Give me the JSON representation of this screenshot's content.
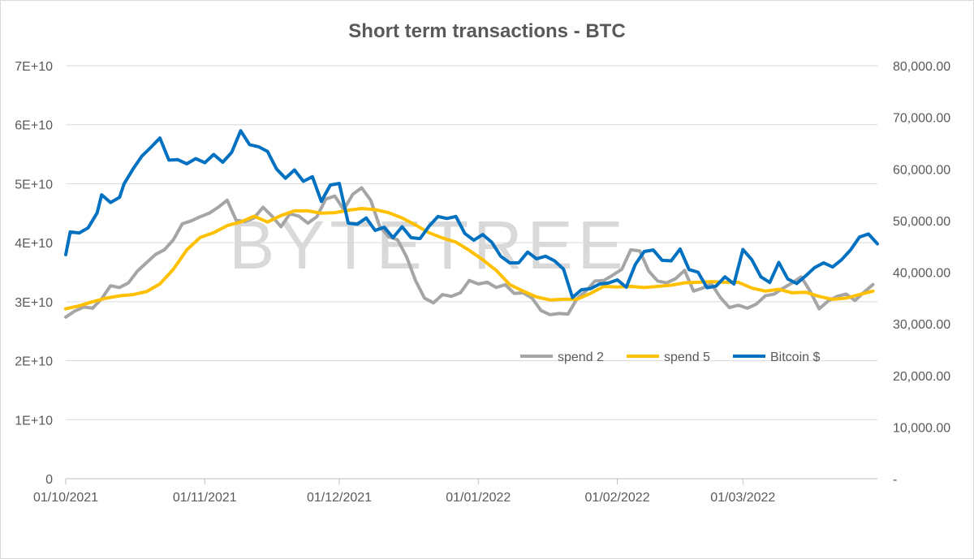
{
  "chart_data": {
    "type": "line",
    "title": "Short term transactions - BTC",
    "watermark": "BYTETREE",
    "x_range": [
      "2021-10-01",
      "2022-03-31"
    ],
    "x_tick_labels": [
      "01/10/2021",
      "01/11/2021",
      "01/12/2021",
      "01/01/2022",
      "01/02/2022",
      "01/03/2022"
    ],
    "x_tick_dates": [
      "2021-10-01",
      "2021-11-01",
      "2021-12-01",
      "2022-01-01",
      "2022-02-01",
      "2022-03-01"
    ],
    "y_left": {
      "range": [
        0,
        70000000000
      ],
      "ticks": [
        0,
        10000000000,
        20000000000,
        30000000000,
        40000000000,
        50000000000,
        60000000000,
        70000000000
      ],
      "tick_labels": [
        "0",
        "1E+10",
        "2E+10",
        "3E+10",
        "4E+10",
        "5E+10",
        "6E+10",
        "7E+10"
      ]
    },
    "y_right": {
      "range": [
        0,
        80000
      ],
      "ticks": [
        0,
        10000,
        20000,
        30000,
        40000,
        50000,
        60000,
        70000,
        80000
      ],
      "tick_labels": [
        "-",
        "10,000.00",
        "20,000.00",
        "30,000.00",
        "40,000.00",
        "50,000.00",
        "60,000.00",
        "70,000.00",
        "80,000.00"
      ]
    },
    "grid": "horizontal",
    "legend_position": "right-middle",
    "series": [
      {
        "name": "spend 2",
        "axis": "left",
        "color": "#a5a5a5",
        "points": [
          [
            "2021-10-01",
            27400000000
          ],
          [
            "2021-10-03",
            28400000000
          ],
          [
            "2021-10-05",
            29100000000
          ],
          [
            "2021-10-07",
            28900000000
          ],
          [
            "2021-10-09",
            30500000000
          ],
          [
            "2021-10-11",
            32700000000
          ],
          [
            "2021-10-13",
            32400000000
          ],
          [
            "2021-10-15",
            33200000000
          ],
          [
            "2021-10-17",
            35200000000
          ],
          [
            "2021-10-19",
            36600000000
          ],
          [
            "2021-10-21",
            38000000000
          ],
          [
            "2021-10-23",
            38800000000
          ],
          [
            "2021-10-25",
            40500000000
          ],
          [
            "2021-10-27",
            43200000000
          ],
          [
            "2021-10-29",
            43700000000
          ],
          [
            "2021-10-31",
            44400000000
          ],
          [
            "2021-11-02",
            45000000000
          ],
          [
            "2021-11-04",
            46000000000
          ],
          [
            "2021-11-06",
            47200000000
          ],
          [
            "2021-11-08",
            43800000000
          ],
          [
            "2021-11-10",
            43600000000
          ],
          [
            "2021-11-12",
            44200000000
          ],
          [
            "2021-11-14",
            46000000000
          ],
          [
            "2021-11-16",
            44500000000
          ],
          [
            "2021-11-18",
            42700000000
          ],
          [
            "2021-11-20",
            44900000000
          ],
          [
            "2021-11-22",
            44500000000
          ],
          [
            "2021-11-24",
            43300000000
          ],
          [
            "2021-11-26",
            44400000000
          ],
          [
            "2021-11-28",
            47400000000
          ],
          [
            "2021-11-30",
            47900000000
          ],
          [
            "2021-12-02",
            45600000000
          ],
          [
            "2021-12-04",
            48200000000
          ],
          [
            "2021-12-06",
            49300000000
          ],
          [
            "2021-12-08",
            47200000000
          ],
          [
            "2021-12-10",
            42800000000
          ],
          [
            "2021-12-12",
            41000000000
          ],
          [
            "2021-12-14",
            40500000000
          ],
          [
            "2021-12-16",
            37600000000
          ],
          [
            "2021-12-18",
            33600000000
          ],
          [
            "2021-12-20",
            30600000000
          ],
          [
            "2021-12-22",
            29800000000
          ],
          [
            "2021-12-24",
            31200000000
          ],
          [
            "2021-12-26",
            30900000000
          ],
          [
            "2021-12-28",
            31500000000
          ],
          [
            "2021-12-30",
            33600000000
          ],
          [
            "2022-01-01",
            33000000000
          ],
          [
            "2022-01-03",
            33300000000
          ],
          [
            "2022-01-05",
            32400000000
          ],
          [
            "2022-01-07",
            32900000000
          ],
          [
            "2022-01-09",
            31400000000
          ],
          [
            "2022-01-11",
            31500000000
          ],
          [
            "2022-01-13",
            30600000000
          ],
          [
            "2022-01-15",
            28500000000
          ],
          [
            "2022-01-17",
            27800000000
          ],
          [
            "2022-01-19",
            28000000000
          ],
          [
            "2022-01-21",
            27900000000
          ],
          [
            "2022-01-23",
            30500000000
          ],
          [
            "2022-01-25",
            31800000000
          ],
          [
            "2022-01-27",
            33500000000
          ],
          [
            "2022-01-29",
            33600000000
          ],
          [
            "2022-01-31",
            34500000000
          ],
          [
            "2022-02-02",
            35500000000
          ],
          [
            "2022-02-04",
            38800000000
          ],
          [
            "2022-02-06",
            38600000000
          ],
          [
            "2022-02-08",
            35200000000
          ],
          [
            "2022-02-10",
            33500000000
          ],
          [
            "2022-02-12",
            33200000000
          ],
          [
            "2022-02-14",
            33900000000
          ],
          [
            "2022-02-16",
            35300000000
          ],
          [
            "2022-02-18",
            31800000000
          ],
          [
            "2022-02-20",
            32300000000
          ],
          [
            "2022-02-22",
            33000000000
          ],
          [
            "2022-02-24",
            30700000000
          ],
          [
            "2022-02-26",
            29000000000
          ],
          [
            "2022-02-28",
            29400000000
          ],
          [
            "2022-03-02",
            28900000000
          ],
          [
            "2022-03-04",
            29600000000
          ],
          [
            "2022-03-06",
            31000000000
          ],
          [
            "2022-03-08",
            31300000000
          ],
          [
            "2022-03-10",
            32300000000
          ],
          [
            "2022-03-12",
            33200000000
          ],
          [
            "2022-03-14",
            34200000000
          ],
          [
            "2022-03-16",
            31800000000
          ],
          [
            "2022-03-18",
            28800000000
          ],
          [
            "2022-03-20",
            30100000000
          ],
          [
            "2022-03-22",
            30900000000
          ],
          [
            "2022-03-24",
            31300000000
          ],
          [
            "2022-03-26",
            30200000000
          ],
          [
            "2022-03-28",
            31600000000
          ],
          [
            "2022-03-30",
            32900000000
          ]
        ]
      },
      {
        "name": "spend 5",
        "axis": "left",
        "color": "#ffc000",
        "points": [
          [
            "2021-10-01",
            28800000000
          ],
          [
            "2021-10-04",
            29300000000
          ],
          [
            "2021-10-07",
            30000000000
          ],
          [
            "2021-10-10",
            30600000000
          ],
          [
            "2021-10-13",
            31000000000
          ],
          [
            "2021-10-16",
            31200000000
          ],
          [
            "2021-10-19",
            31700000000
          ],
          [
            "2021-10-22",
            33000000000
          ],
          [
            "2021-10-25",
            35500000000
          ],
          [
            "2021-10-28",
            38800000000
          ],
          [
            "2021-10-31",
            40900000000
          ],
          [
            "2021-11-03",
            41700000000
          ],
          [
            "2021-11-06",
            42900000000
          ],
          [
            "2021-11-09",
            43500000000
          ],
          [
            "2021-11-12",
            44500000000
          ],
          [
            "2021-11-15",
            43500000000
          ],
          [
            "2021-11-18",
            44600000000
          ],
          [
            "2021-11-21",
            45400000000
          ],
          [
            "2021-11-24",
            45400000000
          ],
          [
            "2021-11-27",
            45000000000
          ],
          [
            "2021-11-30",
            45100000000
          ],
          [
            "2021-12-03",
            45500000000
          ],
          [
            "2021-12-06",
            45800000000
          ],
          [
            "2021-12-09",
            45600000000
          ],
          [
            "2021-12-12",
            45100000000
          ],
          [
            "2021-12-15",
            44200000000
          ],
          [
            "2021-12-18",
            43000000000
          ],
          [
            "2021-12-21",
            41700000000
          ],
          [
            "2021-12-24",
            40800000000
          ],
          [
            "2021-12-27",
            40100000000
          ],
          [
            "2021-12-30",
            38700000000
          ],
          [
            "2022-01-02",
            37100000000
          ],
          [
            "2022-01-05",
            35300000000
          ],
          [
            "2022-01-08",
            32900000000
          ],
          [
            "2022-01-11",
            31800000000
          ],
          [
            "2022-01-14",
            30800000000
          ],
          [
            "2022-01-17",
            30300000000
          ],
          [
            "2022-01-20",
            30400000000
          ],
          [
            "2022-01-23",
            30400000000
          ],
          [
            "2022-01-26",
            31400000000
          ],
          [
            "2022-01-29",
            32600000000
          ],
          [
            "2022-02-01",
            32500000000
          ],
          [
            "2022-02-04",
            32600000000
          ],
          [
            "2022-02-07",
            32400000000
          ],
          [
            "2022-02-10",
            32600000000
          ],
          [
            "2022-02-13",
            32800000000
          ],
          [
            "2022-02-16",
            33200000000
          ],
          [
            "2022-02-19",
            33300000000
          ],
          [
            "2022-02-22",
            33400000000
          ],
          [
            "2022-02-25",
            33300000000
          ],
          [
            "2022-02-28",
            33300000000
          ],
          [
            "2022-03-03",
            32300000000
          ],
          [
            "2022-03-06",
            31800000000
          ],
          [
            "2022-03-09",
            32100000000
          ],
          [
            "2022-03-12",
            31500000000
          ],
          [
            "2022-03-15",
            31600000000
          ],
          [
            "2022-03-18",
            30900000000
          ],
          [
            "2022-03-21",
            30400000000
          ],
          [
            "2022-03-24",
            30600000000
          ],
          [
            "2022-03-27",
            31200000000
          ],
          [
            "2022-03-30",
            31800000000
          ]
        ]
      },
      {
        "name": "Bitcoin $",
        "axis": "right",
        "color": "#0070c0",
        "points": [
          [
            "2021-10-01",
            43400
          ],
          [
            "2021-10-02",
            47800
          ],
          [
            "2021-10-04",
            47600
          ],
          [
            "2021-10-06",
            48600
          ],
          [
            "2021-10-08",
            51500
          ],
          [
            "2021-10-09",
            55000
          ],
          [
            "2021-10-11",
            53500
          ],
          [
            "2021-10-13",
            54500
          ],
          [
            "2021-10-14",
            57100
          ],
          [
            "2021-10-16",
            60000
          ],
          [
            "2021-10-18",
            62500
          ],
          [
            "2021-10-20",
            64200
          ],
          [
            "2021-10-22",
            66000
          ],
          [
            "2021-10-24",
            61700
          ],
          [
            "2021-10-26",
            61800
          ],
          [
            "2021-10-28",
            61000
          ],
          [
            "2021-10-30",
            62000
          ],
          [
            "2021-11-01",
            61200
          ],
          [
            "2021-11-03",
            62800
          ],
          [
            "2021-11-05",
            61300
          ],
          [
            "2021-11-07",
            63200
          ],
          [
            "2021-11-09",
            67400
          ],
          [
            "2021-11-11",
            64700
          ],
          [
            "2021-11-13",
            64300
          ],
          [
            "2021-11-15",
            63400
          ],
          [
            "2021-11-17",
            60000
          ],
          [
            "2021-11-19",
            58200
          ],
          [
            "2021-11-21",
            59800
          ],
          [
            "2021-11-23",
            57600
          ],
          [
            "2021-11-25",
            58500
          ],
          [
            "2021-11-27",
            53700
          ],
          [
            "2021-11-29",
            56900
          ],
          [
            "2021-12-01",
            57200
          ],
          [
            "2021-12-03",
            49500
          ],
          [
            "2021-12-05",
            49300
          ],
          [
            "2021-12-07",
            50500
          ],
          [
            "2021-12-09",
            48100
          ],
          [
            "2021-12-11",
            48700
          ],
          [
            "2021-12-13",
            46700
          ],
          [
            "2021-12-15",
            48800
          ],
          [
            "2021-12-17",
            46700
          ],
          [
            "2021-12-19",
            46500
          ],
          [
            "2021-12-21",
            48900
          ],
          [
            "2021-12-23",
            50800
          ],
          [
            "2021-12-25",
            50400
          ],
          [
            "2021-12-27",
            50800
          ],
          [
            "2021-12-29",
            47500
          ],
          [
            "2021-12-31",
            46200
          ],
          [
            "2022-01-02",
            47300
          ],
          [
            "2022-01-04",
            45800
          ],
          [
            "2022-01-06",
            43100
          ],
          [
            "2022-01-08",
            41800
          ],
          [
            "2022-01-10",
            41800
          ],
          [
            "2022-01-12",
            43900
          ],
          [
            "2022-01-14",
            42600
          ],
          [
            "2022-01-16",
            43100
          ],
          [
            "2022-01-18",
            42200
          ],
          [
            "2022-01-20",
            40600
          ],
          [
            "2022-01-22",
            35100
          ],
          [
            "2022-01-24",
            36600
          ],
          [
            "2022-01-26",
            36800
          ],
          [
            "2022-01-28",
            37700
          ],
          [
            "2022-01-30",
            37900
          ],
          [
            "2022-02-01",
            38500
          ],
          [
            "2022-02-03",
            37100
          ],
          [
            "2022-02-05",
            41500
          ],
          [
            "2022-02-07",
            44000
          ],
          [
            "2022-02-09",
            44300
          ],
          [
            "2022-02-11",
            42300
          ],
          [
            "2022-02-13",
            42200
          ],
          [
            "2022-02-15",
            44500
          ],
          [
            "2022-02-17",
            40500
          ],
          [
            "2022-02-19",
            40000
          ],
          [
            "2022-02-21",
            37000
          ],
          [
            "2022-02-23",
            37300
          ],
          [
            "2022-02-25",
            39100
          ],
          [
            "2022-02-27",
            37700
          ],
          [
            "2022-03-01",
            44400
          ],
          [
            "2022-03-03",
            42400
          ],
          [
            "2022-03-05",
            39100
          ],
          [
            "2022-03-07",
            38000
          ],
          [
            "2022-03-09",
            41900
          ],
          [
            "2022-03-11",
            38700
          ],
          [
            "2022-03-13",
            37800
          ],
          [
            "2022-03-15",
            39300
          ],
          [
            "2022-03-17",
            40900
          ],
          [
            "2022-03-19",
            41800
          ],
          [
            "2022-03-21",
            41000
          ],
          [
            "2022-03-23",
            42400
          ],
          [
            "2022-03-25",
            44300
          ],
          [
            "2022-03-27",
            46800
          ],
          [
            "2022-03-29",
            47400
          ],
          [
            "2022-03-31",
            45500
          ]
        ]
      }
    ]
  }
}
